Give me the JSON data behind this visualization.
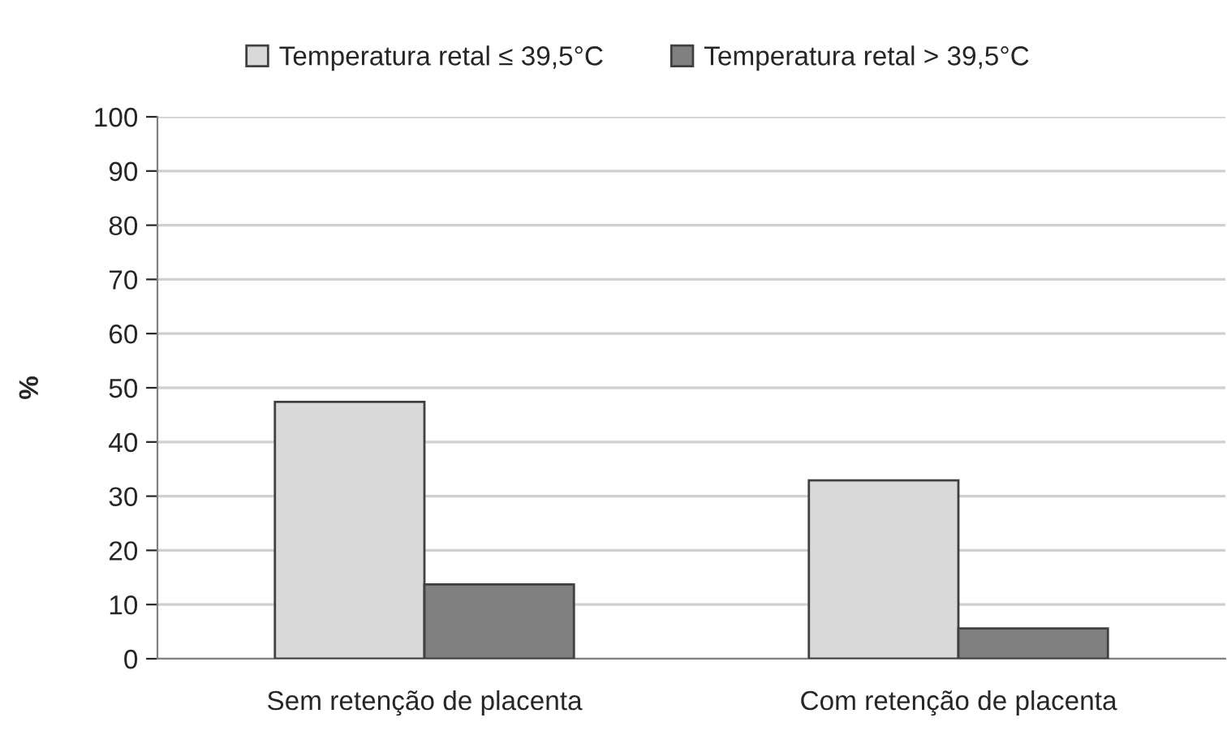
{
  "chart_data": {
    "type": "bar",
    "ylabel": "%",
    "categories": [
      "Sem retenção de placenta",
      "Com retenção de placenta"
    ],
    "series": [
      {
        "name": "Temperatura retal ≤ 39,5°C",
        "color": "#d9d9d9",
        "values": [
          47.4,
          32.9
        ]
      },
      {
        "name": "Temperatura retal > 39,5°C",
        "color": "#808080",
        "values": [
          13.7,
          5.6
        ]
      }
    ],
    "ylim": [
      0,
      100
    ],
    "yticks": [
      0,
      10,
      20,
      30,
      40,
      50,
      60,
      70,
      80,
      90,
      100
    ],
    "grid": "y",
    "legend": "top"
  }
}
